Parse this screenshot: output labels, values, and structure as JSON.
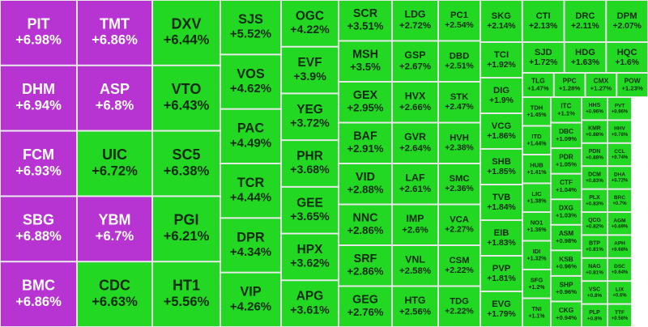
{
  "chart_data": {
    "type": "treemap",
    "categories": [
      "PIT",
      "DHM",
      "FCM",
      "SBG",
      "BMC",
      "TMT",
      "ASP",
      "UIC",
      "YBM",
      "CDC",
      "DXV",
      "VTO",
      "SC5",
      "PGI",
      "HT1",
      "SJS",
      "VOS",
      "PAC",
      "TCR",
      "DPR",
      "VIP",
      "OGC",
      "EVF",
      "YEG",
      "PHR",
      "GEE",
      "HPX",
      "APG",
      "SCR",
      "MSH",
      "GEX",
      "BAF",
      "VID",
      "NNC",
      "SRF",
      "GEG",
      "LDG",
      "GSP",
      "HVX",
      "GVR",
      "LAF",
      "IMP",
      "VNL",
      "HTG",
      "PC1",
      "DBD",
      "STK",
      "HVH",
      "SMC",
      "VCA",
      "CSM",
      "TDG",
      "SKG",
      "CTI",
      "DRC",
      "DPM",
      "TCI",
      "DIG",
      "VCG",
      "SHB",
      "TVB",
      "EIB",
      "PVP",
      "EVG",
      "SJD",
      "HDG",
      "HQC",
      "TLG",
      "PPC",
      "CMX",
      "POW",
      "TDH",
      "ITD",
      "HUB",
      "LIC",
      "NO1",
      "IDI",
      "SFG",
      "TNI",
      "ITC",
      "DBC",
      "PDR",
      "CTF",
      "DXG",
      "ASM",
      "KSB",
      "SHP",
      "CKG",
      "HHS",
      "KMR",
      "PDN",
      "DCM",
      "PLX",
      "QCG",
      "BTP",
      "NAG",
      "VSC",
      "PLP",
      "PVT",
      "HHV",
      "CCL",
      "DHA",
      "BRC",
      "AGM",
      "APH",
      "DSC",
      "LIX",
      "TTF"
    ],
    "values": [
      6.98,
      6.94,
      6.93,
      6.88,
      6.86,
      6.86,
      6.8,
      6.72,
      6.7,
      6.63,
      6.44,
      6.43,
      6.38,
      6.21,
      5.56,
      5.52,
      4.62,
      4.49,
      4.44,
      4.34,
      4.26,
      4.22,
      3.9,
      3.72,
      3.68,
      3.65,
      3.62,
      3.61,
      3.51,
      3.5,
      2.95,
      2.91,
      2.88,
      2.86,
      2.86,
      2.76,
      2.72,
      2.67,
      2.66,
      2.64,
      2.61,
      2.6,
      2.58,
      2.56,
      2.54,
      2.51,
      2.47,
      2.38,
      2.36,
      2.27,
      2.22,
      2.22,
      2.14,
      2.13,
      2.11,
      2.07,
      1.92,
      1.9,
      1.86,
      1.85,
      1.84,
      1.83,
      1.81,
      1.79,
      1.72,
      1.63,
      1.6,
      1.47,
      1.28,
      1.27,
      1.23,
      1.45,
      1.44,
      1.41,
      1.38,
      1.36,
      1.32,
      1.2,
      1.1,
      1.1,
      1.09,
      1.05,
      1.04,
      1.03,
      0.98,
      0.96,
      0.96,
      0.94,
      0.96,
      0.88,
      0.88,
      0.83,
      0.83,
      0.82,
      0.81,
      0.81,
      0.8,
      0.8,
      0.96,
      0.76,
      0.74,
      0.72,
      0.7,
      0.69,
      0.68,
      0.64,
      0.6,
      0.56
    ],
    "value_labels": [
      "+6.98%",
      "+6.94%",
      "+6.93%",
      "+6.88%",
      "+6.86%",
      "+6.86%",
      "+6.8%",
      "+6.72%",
      "+6.7%",
      "+6.63%",
      "+6.44%",
      "+6.43%",
      "+6.38%",
      "+6.21%",
      "+5.56%",
      "+5.52%",
      "+4.62%",
      "+4.49%",
      "+4.44%",
      "+4.34%",
      "+4.26%",
      "+4.22%",
      "+3.9%",
      "+3.72%",
      "+3.68%",
      "+3.65%",
      "+3.62%",
      "+3.61%",
      "+3.51%",
      "+3.5%",
      "+2.95%",
      "+2.91%",
      "+2.88%",
      "+2.86%",
      "+2.86%",
      "+2.76%",
      "+2.72%",
      "+2.67%",
      "+2.66%",
      "+2.64%",
      "+2.61%",
      "+2.6%",
      "+2.58%",
      "+2.56%",
      "+2.54%",
      "+2.51%",
      "+2.47%",
      "+2.38%",
      "+2.36%",
      "+2.27%",
      "+2.22%",
      "+2.22%",
      "+2.14%",
      "+2.13%",
      "+2.11%",
      "+2.07%",
      "+1.92%",
      "+1.9%",
      "+1.86%",
      "+1.85%",
      "+1.84%",
      "+1.83%",
      "+1.81%",
      "+1.79%",
      "+1.72%",
      "+1.63%",
      "+1.6%",
      "+1.47%",
      "+1.28%",
      "+1.27%",
      "+1.23%",
      "+1.45%",
      "+1.44%",
      "+1.41%",
      "+1.38%",
      "+1.36%",
      "+1.32%",
      "+1.2%",
      "+1.1%",
      "+1.1%",
      "+1.09%",
      "+1.05%",
      "+1.04%",
      "+1.03%",
      "+0.98%",
      "+0.96%",
      "+0.96%",
      "+0.94%",
      "+0.96%",
      "+0.88%",
      "+0.88%",
      "+0.83%",
      "+0.83%",
      "+0.82%",
      "+0.81%",
      "+0.81%",
      "+0.8%",
      "+0.8%",
      "+0.96%",
      "+0.76%",
      "+0.74%",
      "+0.72%",
      "+0.7%",
      "+0.69%",
      "+0.68%",
      "+0.64%",
      "+0.6%",
      "+0.56%"
    ],
    "ceiling_indices": [
      0,
      1,
      2,
      3,
      4,
      5,
      6,
      8
    ],
    "ceiling_color": "#b734d2",
    "color": "#22d822"
  }
}
